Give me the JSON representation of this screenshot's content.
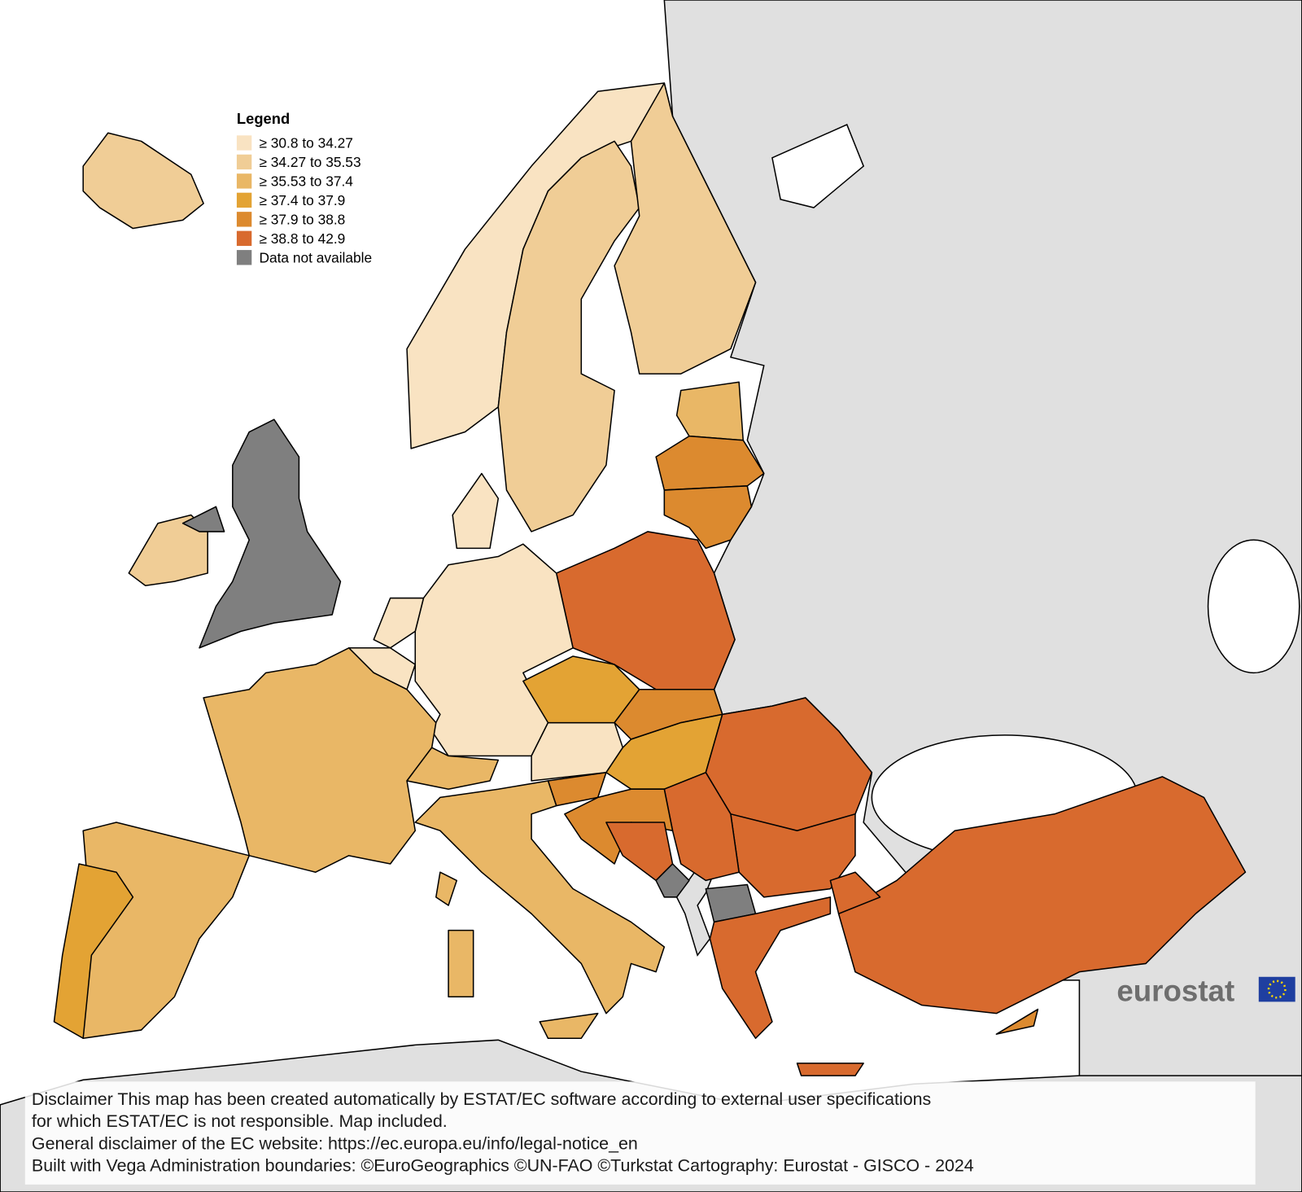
{
  "legend": {
    "title": "Legend",
    "items": [
      {
        "label": "≥ 30.8 to 34.27",
        "color": "#f9e3c2"
      },
      {
        "label": "≥ 34.27 to 35.53",
        "color": "#f0cd96"
      },
      {
        "label": "≥ 35.53 to 37.4",
        "color": "#e9b766"
      },
      {
        "label": "≥ 37.4 to 37.9",
        "color": "#e3a334"
      },
      {
        "label": "≥ 37.9 to 38.8",
        "color": "#dc8a2f"
      },
      {
        "label": "≥ 38.8 to 42.9",
        "color": "#d86a2e"
      },
      {
        "label": "Data not available",
        "color": "#7f7f7f"
      }
    ]
  },
  "logo": "eurostat",
  "disclaimer": [
    "Disclaimer This map has been created automatically by ESTAT/EC software according to external user specifications",
    "for which ESTAT/EC is not responsible. Map included.",
    "General disclaimer of the EC website: https://ec.europa.eu/info/legal-notice_en",
    "Built with Vega Administration boundaries: ©EuroGeographics ©UN-FAO ©Turkstat Cartography: Eurostat - GISCO - 2024"
  ]
}
